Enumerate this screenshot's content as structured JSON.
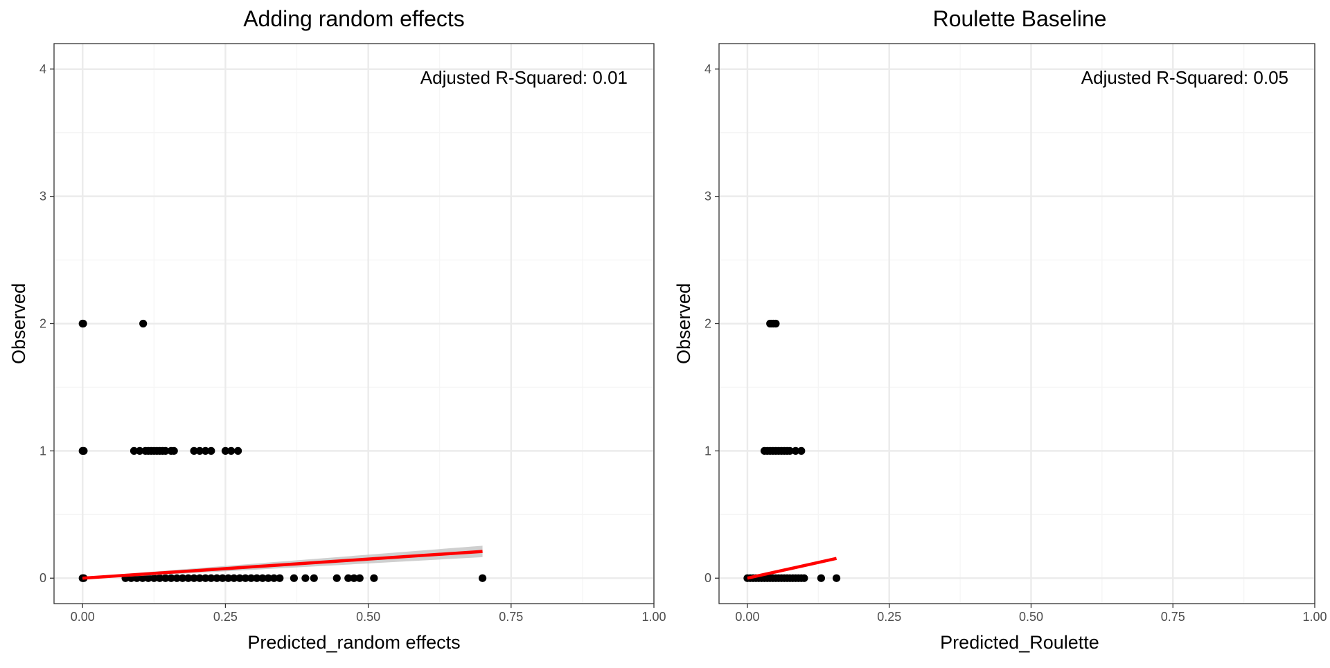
{
  "colors": {
    "background": "#ffffff",
    "panel_border": "#333333",
    "grid_major": "#ebebeb",
    "grid_minor": "#f5f5f5",
    "points": "#000000",
    "fit_line": "#ff0000",
    "fit_band": "#bfbfbf",
    "tick_text": "#4d4d4d",
    "title_text": "#000000"
  },
  "chart_data": [
    {
      "type": "scatter",
      "title": "Adding random effects",
      "xlabel": "Predicted_random effects",
      "ylabel": "Observed",
      "annotation": "Adjusted R-Squared: 0.01",
      "annotation_position": "top-right",
      "xlim": [
        -0.05,
        1.0
      ],
      "ylim": [
        -0.2,
        4.2
      ],
      "xticks": [
        0.0,
        0.25,
        0.5,
        0.75,
        1.0
      ],
      "xtick_labels": [
        "0.00",
        "0.25",
        "0.50",
        "0.75",
        "1.00"
      ],
      "yticks": [
        0,
        1,
        2,
        3,
        4
      ],
      "ytick_labels": [
        "0",
        "1",
        "2",
        "3",
        "4"
      ],
      "grid": true,
      "series": [
        {
          "points": [
            [
              0.0,
              2
            ],
            [
              0.001,
              2
            ],
            [
              0.106,
              2
            ],
            [
              0.0,
              1
            ],
            [
              0.002,
              1
            ],
            [
              0.09,
              1
            ],
            [
              0.1,
              1
            ],
            [
              0.11,
              1
            ],
            [
              0.115,
              1
            ],
            [
              0.12,
              1
            ],
            [
              0.125,
              1
            ],
            [
              0.13,
              1
            ],
            [
              0.135,
              1
            ],
            [
              0.14,
              1
            ],
            [
              0.145,
              1
            ],
            [
              0.155,
              1
            ],
            [
              0.16,
              1
            ],
            [
              0.195,
              1
            ],
            [
              0.205,
              1
            ],
            [
              0.215,
              1
            ],
            [
              0.225,
              1
            ],
            [
              0.25,
              1
            ],
            [
              0.26,
              1
            ],
            [
              0.272,
              1
            ],
            [
              0.0,
              0
            ],
            [
              0.002,
              0
            ],
            [
              0.075,
              0
            ],
            [
              0.085,
              0
            ],
            [
              0.095,
              0
            ],
            [
              0.105,
              0
            ],
            [
              0.115,
              0
            ],
            [
              0.125,
              0
            ],
            [
              0.135,
              0
            ],
            [
              0.145,
              0
            ],
            [
              0.155,
              0
            ],
            [
              0.165,
              0
            ],
            [
              0.175,
              0
            ],
            [
              0.185,
              0
            ],
            [
              0.195,
              0
            ],
            [
              0.205,
              0
            ],
            [
              0.215,
              0
            ],
            [
              0.225,
              0
            ],
            [
              0.235,
              0
            ],
            [
              0.245,
              0
            ],
            [
              0.255,
              0
            ],
            [
              0.265,
              0
            ],
            [
              0.275,
              0
            ],
            [
              0.285,
              0
            ],
            [
              0.295,
              0
            ],
            [
              0.305,
              0
            ],
            [
              0.315,
              0
            ],
            [
              0.325,
              0
            ],
            [
              0.335,
              0
            ],
            [
              0.345,
              0
            ],
            [
              0.37,
              0
            ],
            [
              0.39,
              0
            ],
            [
              0.405,
              0
            ],
            [
              0.445,
              0
            ],
            [
              0.465,
              0
            ],
            [
              0.475,
              0
            ],
            [
              0.485,
              0
            ],
            [
              0.51,
              0
            ],
            [
              0.7,
              0
            ]
          ]
        }
      ],
      "fit_line": {
        "x": [
          0.0,
          0.7
        ],
        "y": [
          0.0,
          0.21
        ],
        "band_halfwidth_at_end": 0.045
      }
    },
    {
      "type": "scatter",
      "title": "Roulette Baseline",
      "xlabel": "Predicted_Roulette",
      "ylabel": "Observed",
      "annotation": "Adjusted R-Squared: 0.05",
      "annotation_position": "top-right",
      "xlim": [
        -0.05,
        1.0
      ],
      "ylim": [
        -0.2,
        4.2
      ],
      "xticks": [
        0.0,
        0.25,
        0.5,
        0.75,
        1.0
      ],
      "xtick_labels": [
        "0.00",
        "0.25",
        "0.50",
        "0.75",
        "1.00"
      ],
      "yticks": [
        0,
        1,
        2,
        3,
        4
      ],
      "ytick_labels": [
        "0",
        "1",
        "2",
        "3",
        "4"
      ],
      "grid": true,
      "series": [
        {
          "points": [
            [
              0.04,
              2
            ],
            [
              0.043,
              2
            ],
            [
              0.046,
              2
            ],
            [
              0.05,
              2
            ],
            [
              0.03,
              1
            ],
            [
              0.035,
              1
            ],
            [
              0.04,
              1
            ],
            [
              0.045,
              1
            ],
            [
              0.05,
              1
            ],
            [
              0.055,
              1
            ],
            [
              0.06,
              1
            ],
            [
              0.065,
              1
            ],
            [
              0.07,
              1
            ],
            [
              0.075,
              1
            ],
            [
              0.085,
              1
            ],
            [
              0.095,
              1
            ],
            [
              0.0,
              0
            ],
            [
              0.005,
              0
            ],
            [
              0.01,
              0
            ],
            [
              0.015,
              0
            ],
            [
              0.02,
              0
            ],
            [
              0.025,
              0
            ],
            [
              0.03,
              0
            ],
            [
              0.035,
              0
            ],
            [
              0.04,
              0
            ],
            [
              0.045,
              0
            ],
            [
              0.05,
              0
            ],
            [
              0.055,
              0
            ],
            [
              0.06,
              0
            ],
            [
              0.065,
              0
            ],
            [
              0.07,
              0
            ],
            [
              0.075,
              0
            ],
            [
              0.08,
              0
            ],
            [
              0.085,
              0
            ],
            [
              0.09,
              0
            ],
            [
              0.095,
              0
            ],
            [
              0.1,
              0
            ],
            [
              0.13,
              0
            ],
            [
              0.157,
              0
            ]
          ]
        }
      ],
      "fit_line": {
        "x": [
          0.0,
          0.157
        ],
        "y": [
          0.0,
          0.155
        ],
        "band_halfwidth_at_end": 0.0
      }
    }
  ]
}
